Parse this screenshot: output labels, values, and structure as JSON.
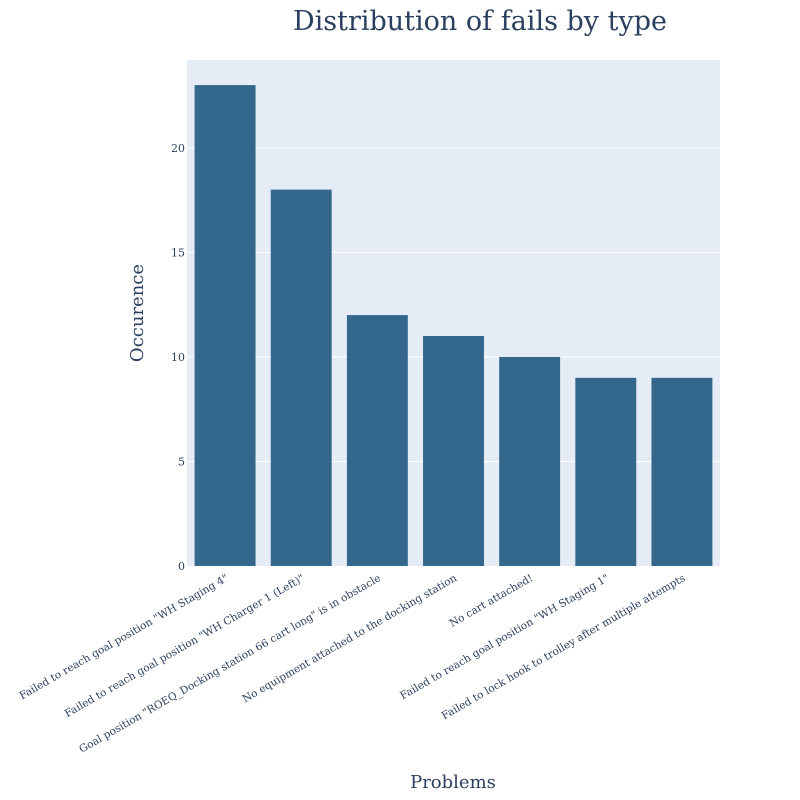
{
  "chart_data": {
    "type": "bar",
    "title": "Distribution of fails by type",
    "xlabel": "Problems",
    "ylabel": "Occurence",
    "categories": [
      "Failed to reach goal position \"WH Staging 4\"",
      "Failed to reach goal position \"WH Charger 1 (Left)\"",
      "Goal position \"ROEQ_Docking station 66 cart long\" is in obstacle",
      "No equipment attached to the docking station",
      "No cart attached!",
      "Failed to reach goal position \"WH Staging 1\"",
      "Failed to lock hook to trolley after multiple attempts"
    ],
    "values": [
      23,
      18,
      12,
      11,
      10,
      9,
      9
    ],
    "ylim": [
      0,
      24.2
    ],
    "yticks": [
      0,
      5,
      10,
      15,
      20
    ],
    "grid": true,
    "legend": "none",
    "colors": {
      "bar": "#34678c",
      "plot_background": "#e5ecf6",
      "grid": "#ffffff",
      "text": "#2a3f5f"
    }
  }
}
